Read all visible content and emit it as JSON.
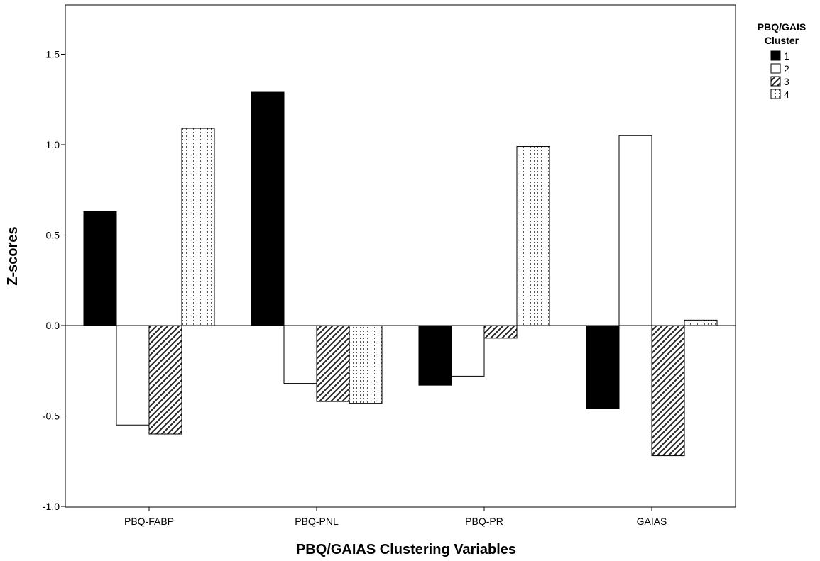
{
  "chart_data": {
    "type": "bar",
    "title": "",
    "xlabel": "PBQ/GAIAS Clustering Variables",
    "ylabel": "Z-scores",
    "categories": [
      "PBQ-FABP",
      "PBQ-PNL",
      "PBQ-PR",
      "GAIAS"
    ],
    "ylim": [
      -1.0,
      1.75
    ],
    "yticks": [
      "-1.0",
      "-0.5",
      "0.0",
      "0.5",
      "1.0",
      "1.5"
    ],
    "grid": false,
    "legend": {
      "title_line1": "PBQ/GAIS",
      "title_line2": "Cluster",
      "placement": "right"
    },
    "series": [
      {
        "name": "1",
        "fill": "black",
        "values": [
          0.63,
          1.29,
          -0.33,
          -0.46
        ]
      },
      {
        "name": "2",
        "fill": "white",
        "values": [
          -0.55,
          -0.32,
          -0.28,
          1.05
        ]
      },
      {
        "name": "3",
        "fill": "hatch",
        "values": [
          -0.6,
          -0.42,
          -0.07,
          -0.72
        ]
      },
      {
        "name": "4",
        "fill": "dots",
        "values": [
          1.09,
          -0.43,
          0.99,
          0.03
        ]
      }
    ]
  }
}
